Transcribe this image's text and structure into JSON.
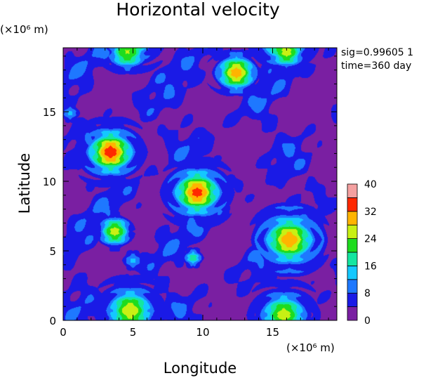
{
  "chart_data": {
    "type": "heatmap",
    "title": "Horizontal velocity",
    "xlabel": "Longitude",
    "ylabel": "Latitude",
    "x_unit_label": "(×10⁶ m)",
    "y_unit_label": "(×10⁶ m)",
    "xlim": [
      0,
      19.6
    ],
    "ylim": [
      0,
      19.6
    ],
    "x_ticks": [
      0,
      5,
      10,
      15
    ],
    "y_ticks": [
      0,
      5,
      10,
      15
    ],
    "annotations": [
      "sig=0.99605 1",
      "time=360 day"
    ],
    "colorbar": {
      "levels": [
        0,
        4,
        8,
        12,
        16,
        20,
        24,
        28,
        32,
        36,
        40
      ],
      "tick_labels": [
        "0",
        "8",
        "16",
        "24",
        "32",
        "40"
      ],
      "colors": [
        "#7a1fa2",
        "#1a1ae6",
        "#1e78ff",
        "#14c8ff",
        "#14e6a0",
        "#1edc1e",
        "#c8f014",
        "#ffb400",
        "#ff2800",
        "#f4a0a0"
      ]
    },
    "background_level": 3,
    "vortices": [
      {
        "x": 3.4,
        "y": 12.1,
        "peak": 34,
        "radius": 2.4
      },
      {
        "x": 9.6,
        "y": 9.2,
        "peak": 33,
        "radius": 2.5
      },
      {
        "x": 16.2,
        "y": 5.8,
        "peak": 30,
        "radius": 2.8
      },
      {
        "x": 3.7,
        "y": 6.4,
        "peak": 26,
        "radius": 1.6
      },
      {
        "x": 4.8,
        "y": 0.7,
        "peak": 26,
        "radius": 2.6
      },
      {
        "x": 15.8,
        "y": 0.4,
        "peak": 25,
        "radius": 2.6
      },
      {
        "x": 12.4,
        "y": 17.8,
        "peak": 30,
        "radius": 2.0
      },
      {
        "x": 16.0,
        "y": 19.3,
        "peak": 26,
        "radius": 1.7
      },
      {
        "x": 4.6,
        "y": 19.3,
        "peak": 24,
        "radius": 2.0
      },
      {
        "x": 9.3,
        "y": 4.5,
        "peak": 20,
        "radius": 0.8
      },
      {
        "x": 5.0,
        "y": 4.3,
        "peak": 13,
        "radius": 0.9
      },
      {
        "x": 0.5,
        "y": 14.9,
        "peak": 13,
        "radius": 0.8
      }
    ]
  }
}
